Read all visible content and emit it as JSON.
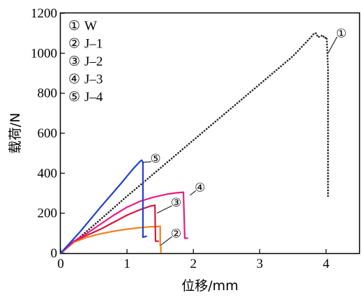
{
  "chart_data": {
    "type": "line",
    "xlabel": "位移/mm",
    "ylabel": "载荷/N",
    "xlim": [
      0,
      4.5
    ],
    "ylim": [
      0,
      1200
    ],
    "x_ticks": [
      0,
      1,
      2,
      3,
      4
    ],
    "y_ticks": [
      0,
      200,
      400,
      600,
      800,
      1000,
      1200
    ],
    "grid": false,
    "legend_position": "top-left",
    "legend": [
      {
        "marker": "①",
        "label": "W"
      },
      {
        "marker": "②",
        "label": "J–1"
      },
      {
        "marker": "③",
        "label": "J–2"
      },
      {
        "marker": "④",
        "label": "J–3"
      },
      {
        "marker": "⑤",
        "label": "J–4"
      }
    ],
    "series": [
      {
        "marker": "①",
        "color": "#222222",
        "style": "dotted",
        "callout": {
          "at": [
            4.03,
            1000
          ],
          "label": [
            4.23,
            1100
          ]
        },
        "points": [
          [
            0,
            0
          ],
          [
            0.5,
            140
          ],
          [
            1.0,
            285
          ],
          [
            1.5,
            425
          ],
          [
            2.0,
            565
          ],
          [
            2.5,
            705
          ],
          [
            3.0,
            845
          ],
          [
            3.5,
            985
          ],
          [
            3.8,
            1090
          ],
          [
            3.82,
            1100
          ],
          [
            3.85,
            1100
          ],
          [
            3.88,
            1080
          ],
          [
            3.92,
            1085
          ],
          [
            3.95,
            1090
          ],
          [
            3.98,
            1075
          ],
          [
            4.01,
            1080
          ],
          [
            4.03,
            920
          ],
          [
            4.03,
            280
          ]
        ]
      },
      {
        "marker": "②",
        "color": "#f07f1e",
        "style": "solid",
        "callout": {
          "at": [
            1.51,
            40
          ],
          "label": [
            1.74,
            100
          ]
        },
        "points": [
          [
            0,
            0
          ],
          [
            0.2,
            55
          ],
          [
            0.4,
            80
          ],
          [
            0.6,
            97
          ],
          [
            0.8,
            110
          ],
          [
            1.0,
            120
          ],
          [
            1.2,
            128
          ],
          [
            1.35,
            132
          ],
          [
            1.45,
            133
          ],
          [
            1.5,
            135
          ],
          [
            1.5,
            40
          ],
          [
            1.51,
            30
          ],
          [
            1.51,
            0
          ]
        ]
      },
      {
        "marker": "③",
        "color": "#d9163a",
        "style": "solid",
        "callout": {
          "at": [
            1.45,
            200
          ],
          "label": [
            1.74,
            255
          ]
        },
        "points": [
          [
            0,
            0
          ],
          [
            0.2,
            60
          ],
          [
            0.4,
            90
          ],
          [
            0.6,
            120
          ],
          [
            0.8,
            155
          ],
          [
            1.0,
            190
          ],
          [
            1.2,
            218
          ],
          [
            1.35,
            235
          ],
          [
            1.42,
            240
          ],
          [
            1.43,
            60
          ],
          [
            1.48,
            60
          ]
        ]
      },
      {
        "marker": "④",
        "color": "#e81b82",
        "style": "solid",
        "callout": {
          "at": [
            1.95,
            290
          ],
          "label": [
            2.1,
            330
          ]
        },
        "points": [
          [
            0,
            0
          ],
          [
            0.2,
            60
          ],
          [
            0.4,
            100
          ],
          [
            0.6,
            145
          ],
          [
            0.8,
            190
          ],
          [
            1.0,
            230
          ],
          [
            1.2,
            260
          ],
          [
            1.4,
            280
          ],
          [
            1.6,
            295
          ],
          [
            1.75,
            302
          ],
          [
            1.85,
            305
          ],
          [
            1.87,
            75
          ],
          [
            1.92,
            75
          ]
        ]
      },
      {
        "marker": "⑤",
        "color": "#1f3fd1",
        "style": "solid",
        "callout": {
          "at": [
            1.24,
            455
          ],
          "label": [
            1.43,
            475
          ]
        },
        "points": [
          [
            0,
            0
          ],
          [
            0.3,
            110
          ],
          [
            0.6,
            230
          ],
          [
            0.9,
            345
          ],
          [
            1.1,
            425
          ],
          [
            1.2,
            460
          ],
          [
            1.22,
            465
          ],
          [
            1.24,
            455
          ],
          [
            1.24,
            80
          ],
          [
            1.3,
            85
          ]
        ]
      }
    ]
  }
}
